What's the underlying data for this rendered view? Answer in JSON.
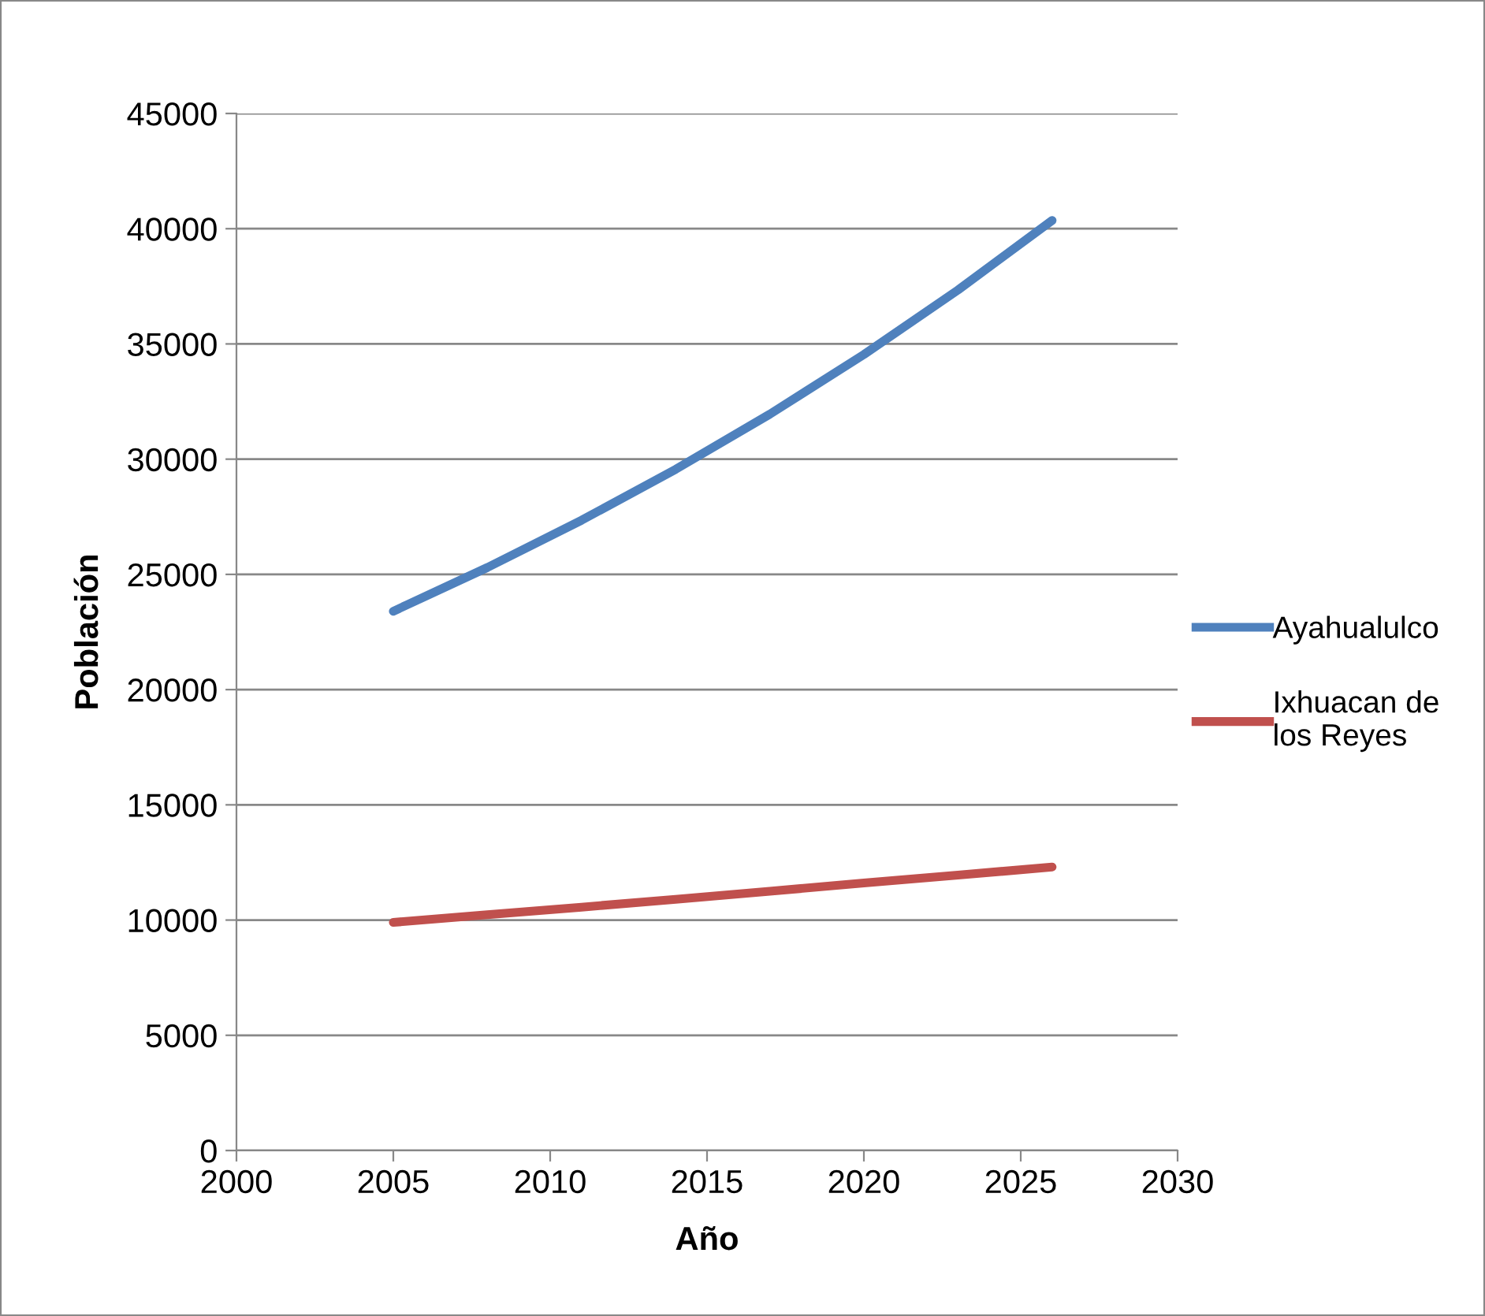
{
  "chart_data": {
    "type": "line",
    "xlabel": "Año",
    "ylabel": "Población",
    "xlim": [
      2000,
      2030
    ],
    "xticks": [
      2000,
      2005,
      2010,
      2015,
      2020,
      2025,
      2030
    ],
    "ylim": [
      0,
      45000
    ],
    "yticks": [
      0,
      5000,
      10000,
      15000,
      20000,
      25000,
      30000,
      35000,
      40000,
      45000
    ],
    "grid": "y",
    "legend": "right",
    "marker": "none",
    "line_style": "solid",
    "x": [
      2005,
      2008,
      2011,
      2014,
      2017,
      2020,
      2023,
      2026
    ],
    "series": [
      {
        "name": "Ayahualulco",
        "color": "#4f81bd",
        "values": [
          23400,
          25300,
          27350,
          29560,
          31950,
          34540,
          37340,
          40360
        ]
      },
      {
        "name": "Ixhuacan de los Reyes",
        "color": "#c0504d",
        "values": [
          9900,
          10230,
          10560,
          10900,
          11250,
          11610,
          11950,
          12300
        ]
      }
    ]
  }
}
